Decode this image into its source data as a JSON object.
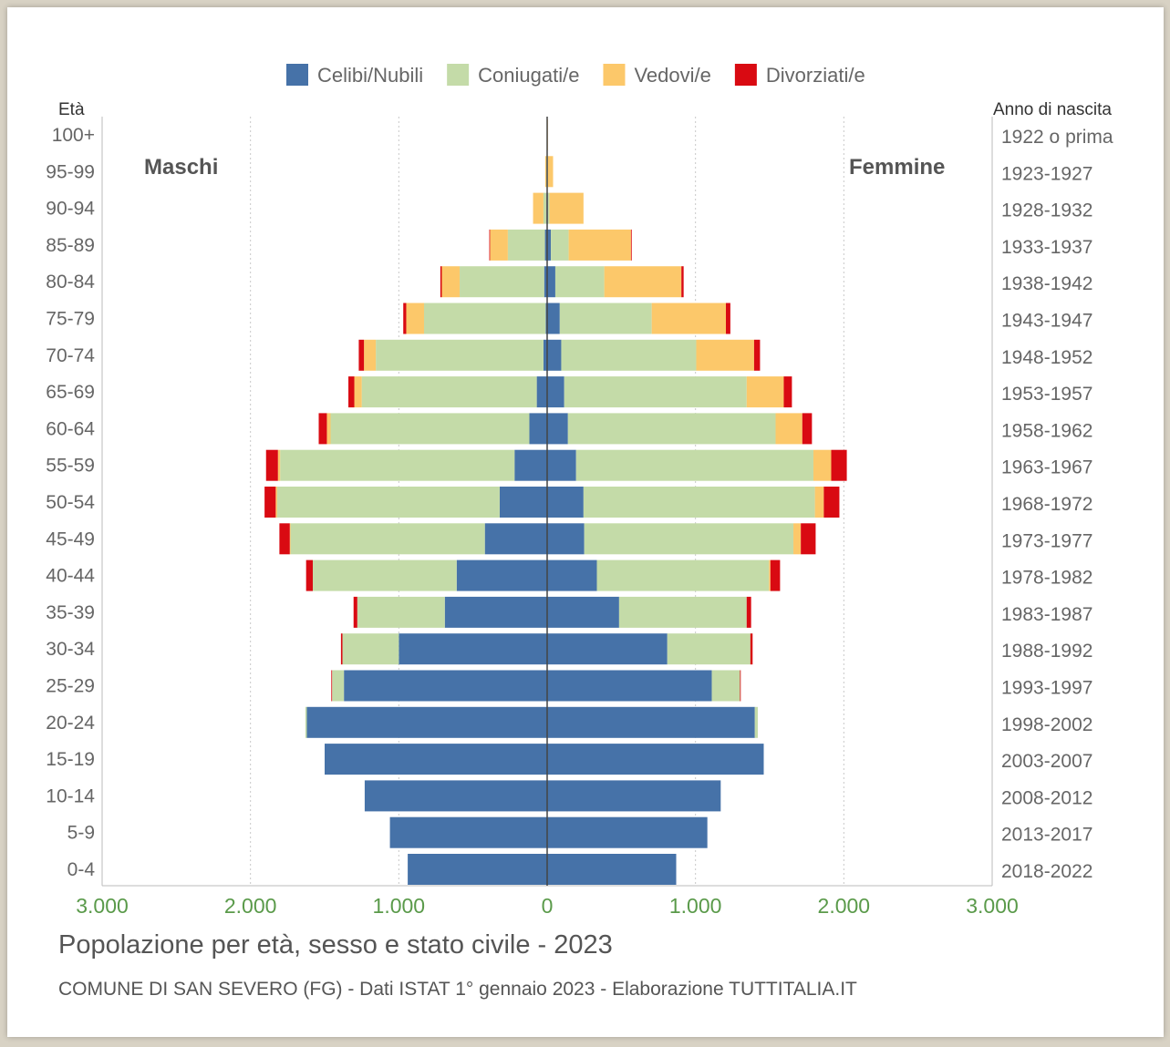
{
  "chart_data": {
    "type": "bar",
    "orientation": "horizontal-population-pyramid",
    "stacked": true,
    "legend_position": "top",
    "grid": true,
    "xlim": [
      -3000,
      3000
    ],
    "ticks": [
      -3000,
      -2000,
      -1000,
      0,
      1000,
      2000,
      3000
    ],
    "tick_labels": [
      "3.000",
      "2.000",
      "1.000",
      "0",
      "1.000",
      "2.000",
      "3.000"
    ],
    "age_axis_title": "Età",
    "year_axis_title": "Anno di nascita",
    "male_label": "Maschi",
    "female_label": "Femmine",
    "categories": [
      "100+",
      "95-99",
      "90-94",
      "85-89",
      "80-84",
      "75-79",
      "70-74",
      "65-69",
      "60-64",
      "55-59",
      "50-54",
      "45-49",
      "40-44",
      "35-39",
      "30-34",
      "25-29",
      "20-24",
      "15-19",
      "10-14",
      "5-9",
      "0-4"
    ],
    "birth_years": [
      "1922 o prima",
      "1923-1927",
      "1928-1932",
      "1933-1937",
      "1938-1942",
      "1943-1947",
      "1948-1952",
      "1953-1957",
      "1958-1962",
      "1963-1967",
      "1968-1972",
      "1973-1977",
      "1978-1982",
      "1983-1987",
      "1988-1992",
      "1993-1997",
      "1998-2002",
      "2003-2007",
      "2008-2012",
      "2013-2017",
      "2018-2022"
    ],
    "series": [
      {
        "name": "Celibi/Nubili",
        "color": "#4672a8",
        "males": [
          0,
          2,
          5,
          15,
          20,
          10,
          25,
          70,
          120,
          220,
          320,
          420,
          610,
          690,
          1000,
          1370,
          1620,
          1500,
          1230,
          1060,
          940
        ],
        "females": [
          0,
          2,
          5,
          25,
          55,
          85,
          95,
          115,
          140,
          195,
          245,
          250,
          335,
          485,
          810,
          1110,
          1400,
          1460,
          1170,
          1080,
          870
        ]
      },
      {
        "name": "Coniugati/e",
        "color": "#c4dba8",
        "males": [
          0,
          3,
          20,
          250,
          570,
          820,
          1130,
          1180,
          1340,
          1580,
          1500,
          1310,
          970,
          590,
          380,
          80,
          10,
          0,
          0,
          0,
          0
        ],
        "females": [
          0,
          3,
          10,
          120,
          330,
          620,
          910,
          1230,
          1400,
          1600,
          1560,
          1410,
          1160,
          860,
          560,
          190,
          20,
          0,
          0,
          0,
          0
        ]
      },
      {
        "name": "Vedovi/e",
        "color": "#fcc86a",
        "males": [
          2,
          8,
          70,
          120,
          120,
          120,
          80,
          50,
          25,
          15,
          10,
          5,
          0,
          0,
          0,
          0,
          0,
          0,
          0,
          0,
          0
        ],
        "females": [
          5,
          35,
          230,
          420,
          520,
          500,
          390,
          250,
          180,
          120,
          60,
          50,
          10,
          0,
          0,
          0,
          0,
          0,
          0,
          0,
          0
        ]
      },
      {
        "name": "Divorziati/e",
        "color": "#d90a12",
        "males": [
          0,
          0,
          0,
          5,
          10,
          20,
          35,
          40,
          55,
          80,
          75,
          70,
          45,
          25,
          10,
          5,
          0,
          0,
          0,
          0,
          0
        ],
        "females": [
          0,
          0,
          0,
          5,
          15,
          30,
          40,
          55,
          65,
          105,
          105,
          100,
          65,
          30,
          15,
          5,
          0,
          0,
          0,
          0,
          0
        ]
      }
    ]
  },
  "footer": {
    "title": "Popolazione per età, sesso e stato civile - 2023",
    "source": "COMUNE DI SAN SEVERO (FG) - Dati ISTAT 1° gennaio 2023 - Elaborazione TUTTITALIA.IT"
  }
}
